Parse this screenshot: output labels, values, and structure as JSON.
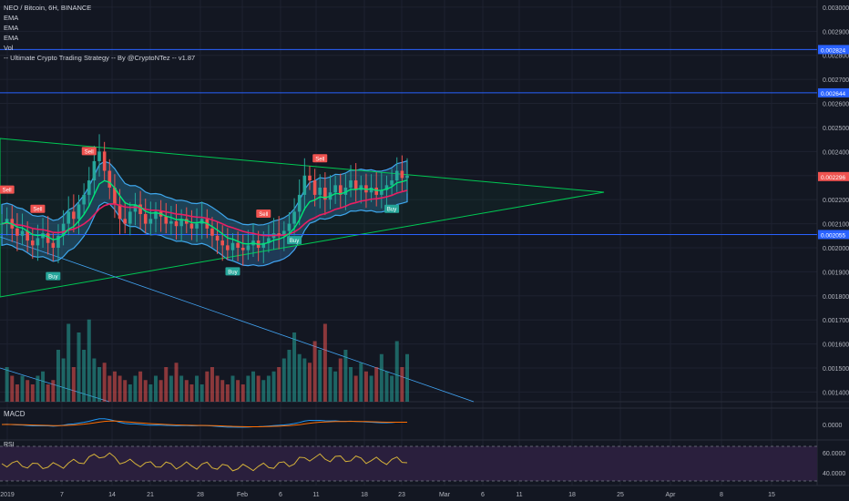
{
  "header": {
    "symbol_line": "NEO / Bitcoin, 6H, BINANCE",
    "indicators": [
      "EMA",
      "EMA",
      "EMA",
      "Vol",
      "-- Ultimate Crypto Trading Strategy -- By @CryptoNTez -- v1.87"
    ]
  },
  "panes": {
    "macd_label": "MACD",
    "rsi_label": "RSI"
  },
  "colors": {
    "background": "#131722",
    "grid": "#1e2230",
    "up_candle": "#26a69a",
    "down_candle": "#ef5350",
    "ema_fast": "#00e676",
    "ema_slow": "#e91e63",
    "cloud": "#42a5f5",
    "triangle": "#00c853",
    "h_line": "#2962ff",
    "rsi_line": "#d4b13a",
    "rsi_band": "#2a1f3d",
    "buy_tag": "#26a69a",
    "sell_tag": "#ef5350"
  },
  "chart_data": {
    "type": "candlestick",
    "title": "NEO / Bitcoin, 6H, BINANCE",
    "x_tick_labels": [
      "2019",
      "7",
      "14",
      "21",
      "28",
      "Feb",
      "6",
      "11",
      "18",
      "23",
      "Mar",
      "6",
      "11",
      "18",
      "25",
      "Apr",
      "8",
      "15"
    ],
    "y_tick_labels": [
      "0.003000",
      "0.002900",
      "0.002800",
      "0.002700",
      "0.002600",
      "0.002500",
      "0.002400",
      "0.002300",
      "0.002200",
      "0.002100",
      "0.002000",
      "0.001900",
      "0.001800",
      "0.001700",
      "0.001600",
      "0.001500",
      "0.001400"
    ],
    "ylim": [
      0.00136,
      0.00303
    ],
    "price_labels": [
      {
        "value": 0.002824,
        "text": "0.002824",
        "style": "line"
      },
      {
        "value": 0.002644,
        "text": "0.002644",
        "style": "line"
      },
      {
        "value": 0.002296,
        "text": "0.002296",
        "style": "last"
      },
      {
        "value": 0.002055,
        "text": "0.002055",
        "style": "line"
      }
    ],
    "close_series": [
      0.0021,
      0.00212,
      0.00208,
      0.00205,
      0.00207,
      0.00203,
      0.00201,
      0.00204,
      0.00206,
      0.00202,
      0.002,
      0.00205,
      0.0021,
      0.00215,
      0.00212,
      0.00218,
      0.00222,
      0.00228,
      0.00236,
      0.0024,
      0.00232,
      0.00225,
      0.00218,
      0.00212,
      0.0021,
      0.00215,
      0.00218,
      0.00214,
      0.0021,
      0.00212,
      0.00215,
      0.00213,
      0.0021,
      0.00211,
      0.00209,
      0.00212,
      0.0021,
      0.00208,
      0.0021,
      0.00212,
      0.00208,
      0.00205,
      0.00203,
      0.00201,
      0.00199,
      0.00202,
      0.002,
      0.00199,
      0.00201,
      0.00203,
      0.002,
      0.00202,
      0.00204,
      0.00206,
      0.00205,
      0.00207,
      0.0021,
      0.00215,
      0.00222,
      0.0023,
      0.00228,
      0.00222,
      0.00225,
      0.0022,
      0.00223,
      0.00226,
      0.00222,
      0.00225,
      0.00228,
      0.00224,
      0.00226,
      0.00223,
      0.00225,
      0.00222,
      0.00224,
      0.00226,
      0.00228,
      0.00232,
      0.00229,
      0.0023
    ],
    "volume_series": [
      0.0,
      0.4,
      0.3,
      0.2,
      0.3,
      0.25,
      0.2,
      0.3,
      0.35,
      0.2,
      0.25,
      0.6,
      0.5,
      0.9,
      0.4,
      0.8,
      0.6,
      0.95,
      0.5,
      0.4,
      0.45,
      0.3,
      0.35,
      0.3,
      0.25,
      0.2,
      0.3,
      0.35,
      0.25,
      0.2,
      0.3,
      0.25,
      0.4,
      0.3,
      0.45,
      0.3,
      0.25,
      0.2,
      0.3,
      0.2,
      0.35,
      0.4,
      0.3,
      0.25,
      0.2,
      0.3,
      0.25,
      0.2,
      0.3,
      0.35,
      0.3,
      0.25,
      0.3,
      0.35,
      0.4,
      0.5,
      0.6,
      0.8,
      0.55,
      0.5,
      0.45,
      0.7,
      0.6,
      0.9,
      0.4,
      0.35,
      0.5,
      0.6,
      0.4,
      0.3,
      0.45,
      0.35,
      0.3,
      0.4,
      0.55,
      0.35,
      0.3,
      0.7,
      0.4,
      0.55
    ],
    "signals": [
      {
        "text": "Sell",
        "index": 1
      },
      {
        "text": "Sell",
        "index": 7
      },
      {
        "text": "Buy",
        "index": 10
      },
      {
        "text": "Sell",
        "index": 17
      },
      {
        "text": "Sell",
        "index": 51
      },
      {
        "text": "Buy",
        "index": 45
      },
      {
        "text": "Sell",
        "index": 62
      },
      {
        "text": "Buy",
        "index": 57
      },
      {
        "text": "Buy",
        "index": 76
      }
    ],
    "rsi_levels": [
      "60.0000",
      "40.0000"
    ],
    "macd_levels": [
      "0.0000"
    ]
  }
}
